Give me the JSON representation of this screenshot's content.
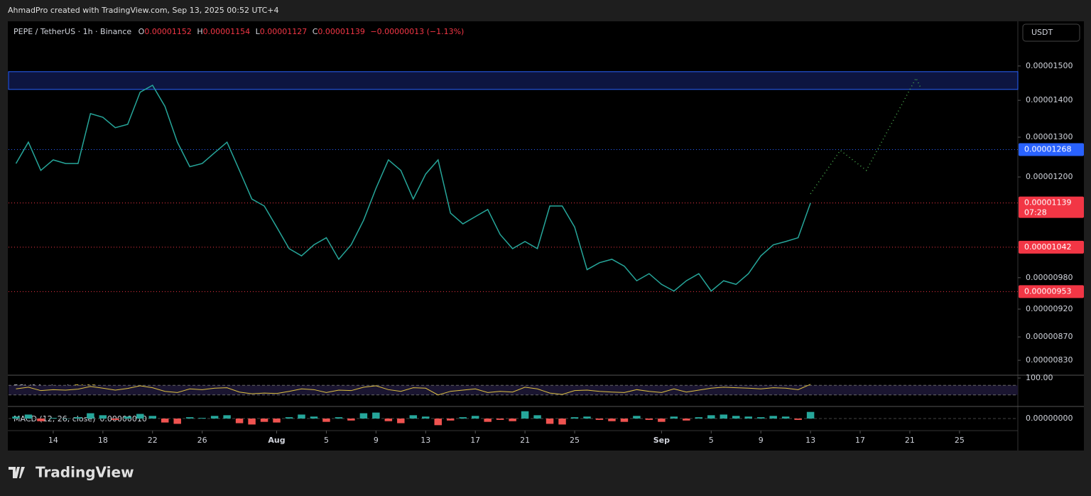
{
  "header": {
    "credit": "AhmadPro created with TradingView.com, Sep 13, 2025 00:52 UTC+4",
    "brand": "TradingView"
  },
  "chart_data": {
    "type": "line",
    "symbol": "PEPE / TetherUS · 1h · Binance",
    "ohlc": [
      {
        "label": "O",
        "value": "0.00001152"
      },
      {
        "label": "H",
        "value": "0.00001154"
      },
      {
        "label": "L",
        "value": "0.00001127"
      },
      {
        "label": "C",
        "value": "0.00001139"
      }
    ],
    "change": "−0.00000013 (−1.13%)",
    "currency": "USDT",
    "x": [
      -3,
      -2,
      -1,
      0,
      1,
      2,
      3,
      4,
      5,
      6,
      7,
      8,
      9,
      10,
      11,
      12,
      13,
      14,
      15,
      16,
      17,
      18,
      19,
      20,
      21,
      22,
      23,
      24,
      25,
      26,
      27,
      28,
      29,
      30,
      31,
      32,
      33,
      34,
      35,
      36,
      37,
      38,
      39,
      40,
      41,
      42,
      43,
      44,
      45,
      46,
      47,
      48,
      49,
      50,
      51,
      52,
      53,
      54,
      55,
      56,
      57,
      58,
      59,
      60,
      61
    ],
    "values": [
      1.233e-05,
      1.287e-05,
      1.216e-05,
      1.242e-05,
      1.233e-05,
      1.233e-05,
      1.363e-05,
      1.353e-05,
      1.325e-05,
      1.334e-05,
      1.423e-05,
      1.443e-05,
      1.383e-05,
      1.287e-05,
      1.225e-05,
      1.233e-05,
      1.26e-05,
      1.287e-05,
      1.216e-05,
      1.148e-05,
      1.132e-05,
      1.085e-05,
      1.039e-05,
      1.024e-05,
      1.047e-05,
      1.062e-05,
      1.017e-05,
      1.047e-05,
      1.1e-05,
      1.173e-05,
      1.242e-05,
      1.216e-05,
      1.148e-05,
      1.207e-05,
      1.242e-05,
      1.116e-05,
      1.092e-05,
      1.108e-05,
      1.124e-05,
      1.069e-05,
      1.039e-05,
      1.054e-05,
      1.039e-05,
      1.132e-05,
      1.132e-05,
      1.085e-05,
      9.96e-06,
      1.01e-05,
      1.017e-05,
      1.003e-05,
      9.74e-06,
      9.88e-06,
      9.67e-06,
      9.54e-06,
      9.74e-06,
      9.88e-06,
      9.54e-06,
      9.74e-06,
      9.67e-06,
      9.88e-06,
      1.024e-05,
      1.047e-05,
      1.054e-05,
      1.062e-05,
      1.139e-05
    ],
    "color": "#26a69a",
    "xlim": [
      -3.6,
      77.7
    ],
    "xticks": [
      {
        "value": 0,
        "label": "14"
      },
      {
        "value": 4,
        "label": "18"
      },
      {
        "value": 8,
        "label": "22"
      },
      {
        "value": 12,
        "label": "26"
      },
      {
        "value": 18,
        "label": "Aug"
      },
      {
        "value": 22,
        "label": "5"
      },
      {
        "value": 26,
        "label": "9"
      },
      {
        "value": 30,
        "label": "13"
      },
      {
        "value": 34,
        "label": "17"
      },
      {
        "value": 38,
        "label": "21"
      },
      {
        "value": 42,
        "label": "25"
      },
      {
        "value": 49,
        "label": "Sep"
      },
      {
        "value": 53,
        "label": "5"
      },
      {
        "value": 57,
        "label": "9"
      },
      {
        "value": 61,
        "label": "13"
      },
      {
        "value": 65,
        "label": "17"
      },
      {
        "value": 69,
        "label": "21"
      },
      {
        "value": 73,
        "label": "25"
      }
    ],
    "ylim": [
      8.09e-06,
      1.641e-05
    ],
    "log_scale": true,
    "yticks": [
      {
        "value": 1.5e-05,
        "label": "0.00001500"
      },
      {
        "value": 1.4e-05,
        "label": "0.00001400"
      },
      {
        "value": 1.3e-05,
        "label": "0.00001300"
      },
      {
        "value": 1.2e-05,
        "label": "0.00001200"
      },
      {
        "value": 9.8e-06,
        "label": "0.00000980"
      },
      {
        "value": 9.2e-06,
        "label": "0.00000920"
      },
      {
        "value": 8.7e-06,
        "label": "0.00000870"
      },
      {
        "value": 8.3e-06,
        "label": "0.00000830"
      }
    ],
    "levels": [
      {
        "value": 1.268e-05,
        "label": "0.00001268",
        "color": "#2962ff"
      },
      {
        "value": 1.139e-05,
        "label": "0.00001139",
        "countdown": "07:28",
        "color": "#f23645"
      },
      {
        "value": 1.042e-05,
        "label": "0.00001042",
        "color": "#f23645"
      },
      {
        "value": 9.53e-06,
        "label": "0.00000953",
        "color": "#f23645"
      }
    ],
    "zone": {
      "range": [
        1.431e-05,
        1.483e-05
      ],
      "color": "#2962ff"
    },
    "projection": {
      "x": [
        61,
        63.4,
        65.5,
        69.5,
        69.9
      ],
      "values": [
        1.16e-05,
        1.266e-05,
        1.216e-05,
        1.464e-05,
        1.434e-05
      ],
      "color": "#4caf50"
    },
    "rsi": {
      "title": "RSI (14, close)",
      "last": "74.13",
      "color": "#e0c341",
      "ylim": [
        0,
        100
      ],
      "yticks": [
        {
          "value": 100,
          "label": "100.00"
        }
      ],
      "bands": [
        70,
        30
      ],
      "values": [
        55,
        62,
        48,
        52,
        50,
        54,
        65,
        58,
        50,
        57,
        68,
        60,
        45,
        40,
        55,
        52,
        58,
        60,
        42,
        35,
        38,
        36,
        45,
        55,
        52,
        40,
        50,
        48,
        62,
        68,
        52,
        45,
        60,
        58,
        30,
        45,
        50,
        55,
        40,
        45,
        42,
        62,
        55,
        38,
        32,
        48,
        50,
        45,
        42,
        40,
        52,
        45,
        40,
        55,
        42,
        50,
        58,
        62,
        60,
        58,
        55,
        60,
        58,
        52,
        74.13
      ]
    },
    "macd": {
      "title": "MACD (12, 26, close)",
      "last": "0.00000010",
      "ylim": [
        -1.5e-07,
        1.5e-07
      ],
      "yticks": [
        {
          "value": 0,
          "label": "0.00000000"
        }
      ],
      "values": [
        3e-08,
        6e-08,
        -4e-08,
        1e-08,
        0,
        2e-08,
        8e-08,
        5e-08,
        -2e-08,
        3e-08,
        7e-08,
        4e-08,
        -6e-08,
        -8e-08,
        2e-08,
        1e-08,
        4e-08,
        5e-08,
        -7e-08,
        -9e-08,
        -5e-08,
        -6e-08,
        2e-08,
        6e-08,
        3e-08,
        -5e-08,
        2e-08,
        -3e-08,
        8e-08,
        9e-08,
        -4e-08,
        -7e-08,
        5e-08,
        3e-08,
        -1e-07,
        -3e-08,
        2e-08,
        4e-08,
        -5e-08,
        -2e-08,
        -4e-08,
        1.1e-07,
        5e-08,
        -8e-08,
        -9e-08,
        2e-08,
        3e-08,
        -2e-08,
        -4e-08,
        -5e-08,
        4e-08,
        -2e-08,
        -5e-08,
        3e-08,
        -3e-08,
        2e-08,
        5e-08,
        6e-08,
        4e-08,
        3e-08,
        2e-08,
        4e-08,
        3e-08,
        -2e-08,
        1e-07
      ]
    }
  }
}
